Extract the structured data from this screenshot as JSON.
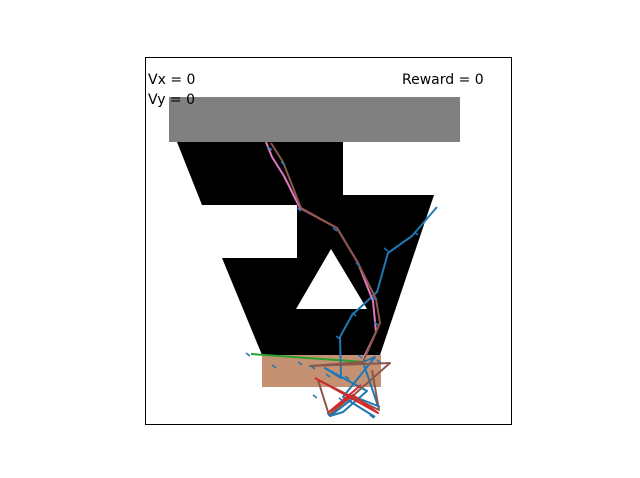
{
  "hud": {
    "vx_label": "Vx = 0",
    "vy_label": "Vy = 0",
    "reward_label": "Reward = 0"
  },
  "colors": {
    "track": "#000000",
    "start_bar": "#808080",
    "goal_zone": "#c49272",
    "trajectory_blue": "#1f77b4",
    "trajectory_pink": "#e377c2",
    "trajectory_brown": "#8c564b",
    "trajectory_green": "#2ca02c",
    "trajectory_red": "#d62728"
  }
}
